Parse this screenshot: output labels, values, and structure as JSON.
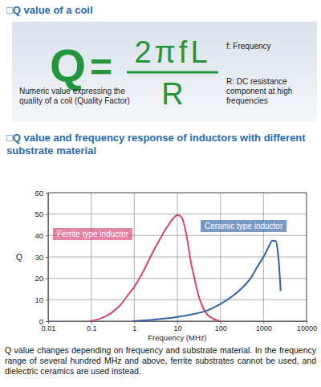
{
  "header": {
    "title": "□Q value of a coil"
  },
  "formula": {
    "lhs": "Q",
    "equals": "=",
    "numerator": "2πfL",
    "denominator": "R",
    "description": "Numeric value expressing the quality of a coil (Quality Factor)",
    "notes": [
      "f: Frequency",
      "R: DC resistance component at high frequencies"
    ]
  },
  "chart_data": {
    "type": "line",
    "title": "□Q value and frequency response of inductors with different substrate material",
    "x_label": "Frequency (MHz)",
    "y_label": "Q",
    "log": "x",
    "grid": true,
    "xlim": [
      0.01,
      10000
    ],
    "xticks": [
      0.01,
      0.1,
      1,
      10,
      100,
      1000,
      10000
    ],
    "ylim": [
      0,
      60
    ],
    "yticks": [
      0,
      10,
      20,
      30,
      40,
      50,
      60
    ],
    "series": [
      {
        "name": "Ferrite type inductor",
        "color": "#d8427a",
        "x": [
          0.09,
          0.15,
          0.2,
          0.3,
          0.5,
          0.7,
          1,
          1.5,
          2,
          3,
          4,
          5,
          6,
          7,
          8,
          10,
          12,
          14,
          16,
          18,
          20,
          25,
          30,
          40,
          50,
          70,
          100
        ],
        "values": [
          0,
          1,
          2,
          4,
          8,
          12,
          16,
          22,
          27,
          34,
          38.5,
          42,
          44.5,
          46.5,
          48,
          49.5,
          49,
          46,
          41,
          35,
          29,
          20,
          13,
          6,
          3,
          1,
          0
        ]
      },
      {
        "name": "Ceramic type inductor",
        "color": "#2f64a8",
        "x": [
          0.9,
          2,
          5,
          10,
          20,
          50,
          100,
          200,
          300,
          500,
          700,
          1000,
          1300,
          1600,
          1900,
          2100,
          2300,
          2500
        ],
        "values": [
          0,
          0.5,
          1.2,
          2,
          3,
          5,
          8,
          12,
          15,
          20,
          25,
          30,
          34.5,
          37.5,
          37.5,
          34,
          26,
          14
        ]
      }
    ]
  },
  "caption": "Q value changes depending on frequency and substrate material. In the frequency range of several hundred MHz and above, ferrite substrates cannot be used, and dielectric ceramics are used instead."
}
